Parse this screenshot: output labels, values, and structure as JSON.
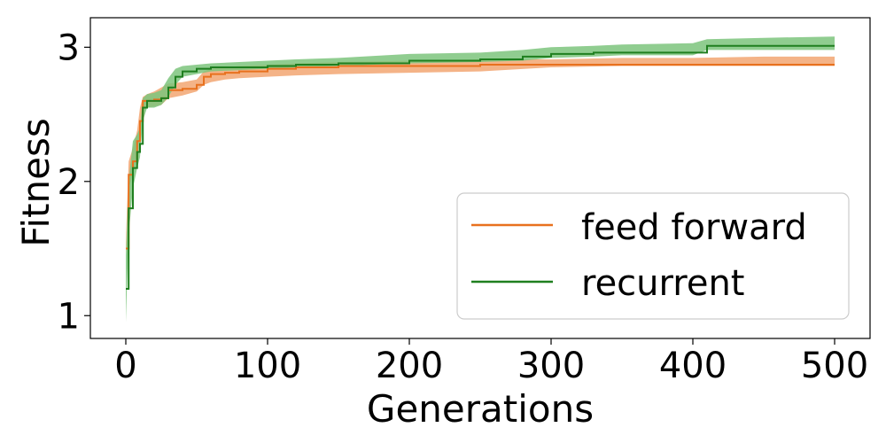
{
  "chart_data": {
    "type": "line",
    "title": "",
    "xlabel": "Generations",
    "ylabel": "Fitness",
    "xlim": [
      -25,
      525
    ],
    "ylim": [
      0.83,
      3.22
    ],
    "xticks": [
      0,
      100,
      200,
      300,
      400,
      500
    ],
    "yticks": [
      1,
      2,
      3
    ],
    "grid": false,
    "legend_position": "lower-right",
    "series": [
      {
        "name": "feed forward",
        "color": "#e8711e",
        "band_color": "#f2a672",
        "x": [
          0,
          2,
          5,
          8,
          10,
          12,
          15,
          20,
          25,
          30,
          40,
          50,
          55,
          60,
          70,
          80,
          100,
          120,
          150,
          200,
          250,
          300,
          350,
          400,
          450,
          500
        ],
        "mean": [
          1.5,
          2.05,
          2.15,
          2.3,
          2.45,
          2.6,
          2.6,
          2.61,
          2.62,
          2.68,
          2.69,
          2.72,
          2.78,
          2.8,
          2.81,
          2.82,
          2.84,
          2.85,
          2.86,
          2.86,
          2.87,
          2.87,
          2.87,
          2.87,
          2.87,
          2.87
        ],
        "lower": [
          1.45,
          1.95,
          2.05,
          2.2,
          2.35,
          2.55,
          2.55,
          2.56,
          2.57,
          2.62,
          2.64,
          2.67,
          2.72,
          2.74,
          2.76,
          2.77,
          2.78,
          2.79,
          2.8,
          2.81,
          2.82,
          2.85,
          2.86,
          2.86,
          2.86,
          2.86
        ],
        "upper": [
          1.55,
          2.15,
          2.25,
          2.38,
          2.55,
          2.63,
          2.65,
          2.67,
          2.7,
          2.73,
          2.74,
          2.76,
          2.82,
          2.84,
          2.85,
          2.86,
          2.87,
          2.88,
          2.89,
          2.9,
          2.91,
          2.91,
          2.92,
          2.92,
          2.93,
          2.93
        ]
      },
      {
        "name": "recurrent",
        "color": "#1f7f1f",
        "band_color": "#7cc47c",
        "x": [
          0,
          2,
          5,
          8,
          10,
          12,
          15,
          20,
          25,
          30,
          35,
          40,
          50,
          60,
          80,
          100,
          120,
          150,
          200,
          250,
          280,
          300,
          330,
          350,
          400,
          410,
          450,
          500
        ],
        "mean": [
          1.2,
          1.8,
          2.1,
          2.22,
          2.28,
          2.55,
          2.6,
          2.6,
          2.62,
          2.7,
          2.78,
          2.82,
          2.84,
          2.85,
          2.85,
          2.86,
          2.87,
          2.88,
          2.9,
          2.91,
          2.93,
          2.95,
          2.96,
          2.96,
          2.96,
          3.01,
          3.01,
          3.01
        ],
        "lower": [
          0.95,
          1.6,
          1.95,
          2.1,
          2.18,
          2.45,
          2.55,
          2.55,
          2.57,
          2.63,
          2.72,
          2.78,
          2.8,
          2.82,
          2.83,
          2.84,
          2.85,
          2.86,
          2.88,
          2.89,
          2.9,
          2.92,
          2.93,
          2.94,
          2.94,
          2.98,
          2.98,
          2.98
        ],
        "upper": [
          1.45,
          2.0,
          2.3,
          2.35,
          2.4,
          2.62,
          2.65,
          2.66,
          2.68,
          2.77,
          2.84,
          2.86,
          2.87,
          2.88,
          2.89,
          2.9,
          2.91,
          2.92,
          2.95,
          2.96,
          2.98,
          3.0,
          3.01,
          3.02,
          3.03,
          3.06,
          3.07,
          3.08
        ]
      }
    ]
  }
}
